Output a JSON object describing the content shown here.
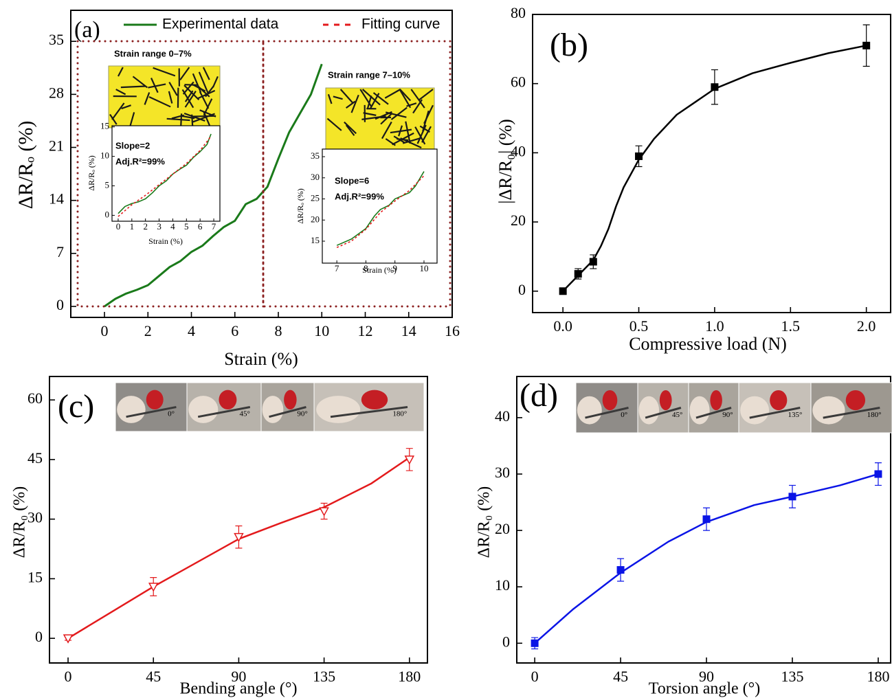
{
  "chart_data": [
    {
      "type": "line",
      "title": "(a)",
      "xlabel": "Strain (%)",
      "ylabel": "ΔR/Rₒ (%)",
      "xlim": [
        -1.55,
        16
      ],
      "ylim": [
        -1.45,
        39.1
      ],
      "xticks": [
        0,
        2,
        4,
        6,
        8,
        10,
        12,
        14,
        16
      ],
      "yticks": [
        0,
        7,
        14,
        21,
        28,
        35
      ],
      "legend": [
        {
          "name": "Experimental data",
          "color": "#1a7a1a",
          "dash": false
        },
        {
          "name": "Fitting curve",
          "color": "#e31a1c",
          "dash": true
        }
      ],
      "series": [
        {
          "color": "#1a7a1a",
          "style": "line",
          "dash": false,
          "x": [
            0,
            0.5,
            1,
            1.5,
            2,
            2.5,
            3,
            3.5,
            4,
            4.5,
            5,
            5.5,
            6,
            6.5,
            7,
            7.5,
            8,
            8.5,
            9,
            9.5,
            10
          ],
          "values": [
            0,
            1,
            1.7,
            2.2,
            2.8,
            4,
            5.2,
            6,
            7.2,
            8,
            9.3,
            10.5,
            11.3,
            13.5,
            14.2,
            15.8,
            19.5,
            23,
            25.5,
            28,
            32
          ]
        }
      ]
    },
    {
      "type": "line",
      "xlabel": "Strain (%)",
      "ylabel": "ΔR/Rₒ (%)",
      "xlim": [
        -0.45,
        7.45
      ],
      "ylim": [
        -1,
        15.2
      ],
      "xticks": [
        0,
        1,
        2,
        3,
        4,
        5,
        6,
        7
      ],
      "yticks": [
        0,
        5,
        10,
        15
      ],
      "annotations": [
        "Strain range 0–7%",
        "Slope=2",
        "Adj.R²=99%"
      ],
      "series": [
        {
          "color": "#1a7a1a",
          "style": "line",
          "dash": false,
          "x": [
            0,
            0.5,
            1,
            1.5,
            2,
            2.5,
            3,
            3.5,
            4,
            4.5,
            5,
            5.5,
            6,
            6.5,
            6.8
          ],
          "values": [
            0.3,
            1.5,
            2,
            2.3,
            2.8,
            3.8,
            5,
            5.8,
            7,
            7.8,
            8.5,
            9.8,
            10.8,
            12,
            13.8
          ]
        },
        {
          "color": "#e31a1c",
          "style": "line",
          "dash": true,
          "x": [
            0,
            1,
            2,
            3,
            4,
            5,
            6,
            6.8
          ],
          "values": [
            -0.2,
            1.8,
            3.4,
            5.2,
            7,
            8.8,
            11,
            13.4
          ]
        }
      ]
    },
    {
      "type": "line",
      "xlabel": "Strain (%)",
      "ylabel": "ΔR/Rₒ (%)",
      "xlim": [
        6.5,
        10.45
      ],
      "ylim": [
        9.8,
        36.8
      ],
      "xticks": [
        7,
        8,
        9,
        10
      ],
      "yticks": [
        15,
        20,
        25,
        30,
        35
      ],
      "annotations": [
        "Strain range 7–10%",
        "Slope=6",
        "Adj.R²=99%"
      ],
      "series": [
        {
          "color": "#1a7a1a",
          "style": "line",
          "dash": false,
          "x": [
            7,
            7.5,
            8,
            8.3,
            8.5,
            8.8,
            9,
            9.5,
            9.7,
            10
          ],
          "values": [
            14,
            15.5,
            18,
            21,
            22.5,
            23.5,
            25,
            26.5,
            28,
            31.5
          ]
        },
        {
          "color": "#e31a1c",
          "style": "line",
          "dash": true,
          "x": [
            7,
            7.5,
            8,
            8.5,
            9,
            9.5,
            10
          ],
          "values": [
            13.5,
            15,
            17.8,
            21.8,
            24.5,
            27,
            30.5
          ]
        }
      ]
    },
    {
      "type": "scatter",
      "title": "(b)",
      "xlabel": "Compressive load (N)",
      "ylabel": "|ΔR/R₀| (%)",
      "xlim": [
        -0.2,
        2.16
      ],
      "ylim": [
        -6.2,
        80
      ],
      "xticks": [
        {
          "value": 0,
          "label": "0.0"
        },
        0.5,
        {
          "value": 1,
          "label": "1.0"
        },
        1.5,
        {
          "value": 2,
          "label": "2.0"
        }
      ],
      "yticks": [
        0,
        20,
        40,
        60,
        80
      ],
      "series": [
        {
          "color": "#000000",
          "style": "line",
          "dash": false,
          "x": [
            0,
            0.1,
            0.2,
            0.25,
            0.3,
            0.35,
            0.4,
            0.5,
            0.6,
            0.75,
            1,
            1.25,
            1.5,
            1.75,
            2
          ],
          "values": [
            0,
            4.5,
            9,
            13,
            18,
            24.5,
            30,
            38,
            44,
            51,
            58.5,
            63,
            66,
            68.8,
            71
          ]
        },
        {
          "color": "#000000",
          "style": "points",
          "marker": "square",
          "marker_filled": true,
          "x": [
            0,
            0.1,
            0.2,
            0.5,
            1,
            2
          ],
          "values": [
            0,
            5,
            8.5,
            39,
            59,
            71
          ],
          "errors": [
            0.8,
            1.5,
            2,
            3,
            5,
            6
          ]
        }
      ]
    },
    {
      "type": "scatter",
      "title": "(c)",
      "xlabel": "Bending angle (°)",
      "ylabel": "ΔR/R₀ (%)",
      "xlim": [
        -9.8,
        189.5
      ],
      "ylim": [
        -6.2,
        65.9
      ],
      "xticks": [
        0,
        45,
        90,
        135,
        180
      ],
      "yticks": [
        0,
        15,
        30,
        45,
        60
      ],
      "photo_labels": [
        "0°",
        "45°",
        "90°",
        "180°"
      ],
      "series": [
        {
          "color": "#e31a1c",
          "style": "line",
          "dash": false,
          "x": [
            0,
            45,
            90,
            112,
            135,
            160,
            180
          ],
          "values": [
            0,
            13,
            25,
            29,
            33,
            39,
            45.5
          ]
        },
        {
          "color": "#e31a1c",
          "style": "points",
          "marker": "triangle-down",
          "marker_filled": false,
          "x": [
            0,
            45,
            90,
            135,
            180
          ],
          "values": [
            0,
            13,
            25.5,
            32,
            45
          ],
          "errors": [
            0.5,
            2.3,
            2.8,
            2,
            2.8
          ]
        }
      ]
    },
    {
      "type": "scatter",
      "title": "(d)",
      "xlabel": "Torsion angle (°)",
      "ylabel": "ΔR/R₀ (%)",
      "xlim": [
        -9.4,
        186.5
      ],
      "ylim": [
        -3.5,
        47.3
      ],
      "xticks": [
        0,
        45,
        90,
        135,
        180
      ],
      "yticks": [
        0,
        10,
        20,
        30,
        40
      ],
      "photo_labels": [
        "0°",
        "45°",
        "90°",
        "135°",
        "180°"
      ],
      "series": [
        {
          "color": "#0a14e6",
          "style": "line",
          "dash": false,
          "x": [
            0,
            20,
            45,
            70,
            90,
            115,
            135,
            160,
            180
          ],
          "values": [
            0,
            6,
            12.5,
            18,
            21.5,
            24.5,
            26,
            28,
            30
          ]
        },
        {
          "color": "#0a14e6",
          "style": "points",
          "marker": "square",
          "marker_filled": true,
          "x": [
            0,
            45,
            90,
            135,
            180
          ],
          "values": [
            0,
            13,
            22,
            26,
            30
          ],
          "errors": [
            1,
            2,
            2,
            2,
            2
          ]
        }
      ]
    }
  ]
}
